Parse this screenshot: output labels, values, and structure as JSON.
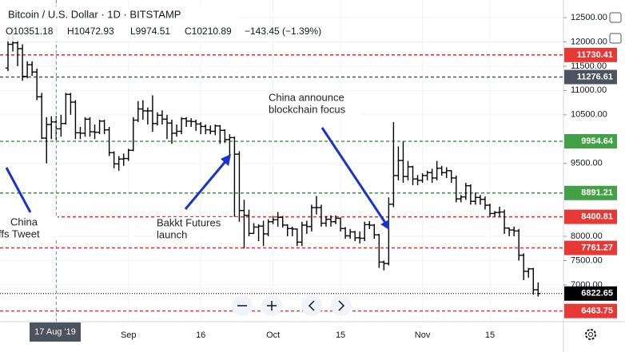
{
  "chart_data": {
    "type": "ohlc",
    "title": "Bitcoin / U.S. Dollar · 1D · BITSTAMP",
    "header_values": [
      "O10351.18",
      "H10472.93",
      "L9974.51",
      "C10210.89",
      "−143.45 (−1.39%)"
    ],
    "crosshair_label": "17 Aug '19",
    "categories": [
      null,
      null,
      null,
      null,
      null,
      null,
      null,
      null,
      null,
      null,
      null,
      null,
      null,
      null,
      null,
      null,
      null,
      null,
      null,
      null,
      null,
      null,
      null,
      null,
      null,
      "Sep",
      null,
      null,
      null,
      null,
      null,
      null,
      null,
      null,
      null,
      null,
      null,
      null,
      null,
      null,
      "16",
      null,
      null,
      null,
      null,
      null,
      null,
      null,
      null,
      null,
      null,
      null,
      null,
      null,
      null,
      "Oct",
      null,
      null,
      null,
      null,
      null,
      null,
      null,
      null,
      null,
      null,
      null,
      null,
      null,
      "15",
      null,
      null,
      null,
      null,
      null,
      null,
      null,
      null,
      null,
      null,
      null,
      null,
      null,
      null,
      null,
      null,
      "Nov",
      null,
      null,
      null,
      null,
      null,
      null,
      null,
      null,
      null,
      null,
      null,
      null,
      null,
      "15",
      null,
      null,
      null,
      null,
      null,
      null,
      null,
      null,
      null,
      null
    ],
    "crosshair_index": 10,
    "series": [
      {
        "color": "#000000",
        "open": [
          11460,
          11950,
          11980,
          11860,
          11290,
          11530,
          11380,
          10870,
          10020,
          10300,
          10351.18,
          10210.89,
          10320,
          10920,
          10760,
          10130,
          10120,
          10410,
          10150,
          10140,
          10370,
          10190,
          9720,
          9490,
          9590,
          9600,
          9770,
          10390,
          10620,
          10580,
          10580,
          10320,
          10490,
          10410,
          10330,
          10120,
          10160,
          10420,
          10370,
          10360,
          10310,
          10260,
          10190,
          10160,
          10270,
          10180,
          9990,
          10030,
          9690,
          8530,
          8430,
          8060,
          8190,
          8210,
          8050,
          8300,
          8340,
          8390,
          8230,
          8160,
          8150,
          7880,
          8230,
          8200,
          8590,
          8590,
          8270,
          8350,
          8300,
          8370,
          8160,
          8010,
          8090,
          7970,
          7960,
          8240,
          8230,
          8030,
          7470,
          7440,
          8660,
          9250,
          9560,
          9230,
          9430,
          9180,
          9150,
          9250,
          9310,
          9200,
          9400,
          9310,
          9350,
          9200,
          8770,
          8810,
          9040,
          8720,
          8800,
          8760,
          8640,
          8470,
          8490,
          8500,
          8170,
          8130,
          8110,
          7610,
          7280,
          7330,
          6900
        ],
        "high": [
          12100,
          12300,
          12050,
          11950,
          11600,
          11600,
          11450,
          10950,
          10450,
          10470,
          10472.93,
          10500,
          10950,
          10950,
          10800,
          10250,
          10450,
          10450,
          10300,
          10400,
          10400,
          10250,
          9750,
          9650,
          9700,
          9800,
          10450,
          10780,
          10800,
          10650,
          10900,
          10550,
          10590,
          10500,
          10400,
          10300,
          10450,
          10450,
          10430,
          10400,
          10350,
          10300,
          10280,
          10300,
          10290,
          10200,
          10100,
          10050,
          9750,
          8750,
          8550,
          8270,
          8250,
          8320,
          8350,
          8420,
          8500,
          8420,
          8250,
          8200,
          8160,
          8300,
          8320,
          8650,
          8830,
          8650,
          8420,
          8430,
          8430,
          8390,
          8190,
          8150,
          8110,
          8100,
          8300,
          8310,
          8250,
          8050,
          7500,
          8800,
          10350,
          9850,
          9950,
          9550,
          9450,
          9260,
          9300,
          9350,
          9390,
          9550,
          9450,
          9420,
          9360,
          9250,
          8850,
          9100,
          9070,
          8900,
          8850,
          8820,
          8670,
          8520,
          8610,
          8550,
          8180,
          8200,
          8150,
          7650,
          7350,
          7350,
          7050
        ],
        "low": [
          11400,
          11800,
          11500,
          11200,
          11250,
          11300,
          10800,
          10000,
          9500,
          10000,
          9974.51,
          10050,
          10300,
          10500,
          10000,
          10000,
          10050,
          10050,
          10000,
          10100,
          10100,
          9650,
          9400,
          9350,
          9450,
          9550,
          9750,
          10350,
          10400,
          10300,
          10150,
          10280,
          10300,
          10000,
          9900,
          10050,
          10100,
          10250,
          10250,
          10170,
          10100,
          10100,
          10100,
          10080,
          9900,
          9920,
          9600,
          8400,
          8300,
          7750,
          8000,
          8050,
          7900,
          7800,
          8000,
          8250,
          8200,
          8180,
          8000,
          8000,
          7800,
          7800,
          8050,
          8100,
          8450,
          8200,
          8200,
          8200,
          8250,
          8100,
          7950,
          7950,
          7900,
          7850,
          7900,
          8150,
          7950,
          7350,
          7300,
          7400,
          8600,
          9150,
          9100,
          9150,
          9050,
          9050,
          9100,
          9150,
          9100,
          9150,
          9250,
          9200,
          9100,
          8700,
          8700,
          8750,
          8650,
          8650,
          8650,
          8550,
          8400,
          8400,
          8400,
          8050,
          8000,
          8000,
          7500,
          7100,
          7150,
          6800,
          6760
        ],
        "close": [
          11950,
          11980,
          11860,
          11290,
          11530,
          11380,
          10870,
          10020,
          10300,
          10354.34,
          10210.89,
          10320,
          10920,
          10760,
          10130,
          10120,
          10410,
          10150,
          10140,
          10370,
          10190,
          9720,
          9490,
          9590,
          9600,
          9770,
          10390,
          10620,
          10580,
          10580,
          10320,
          10490,
          10410,
          10330,
          10120,
          10160,
          10420,
          10370,
          10360,
          10310,
          10260,
          10190,
          10160,
          10270,
          10180,
          9990,
          10030,
          9690,
          8530,
          8430,
          8060,
          8190,
          8210,
          8050,
          8300,
          8340,
          8390,
          8230,
          8160,
          8150,
          7880,
          8230,
          8200,
          8590,
          8590,
          8270,
          8350,
          8300,
          8370,
          8160,
          8010,
          8090,
          7970,
          7960,
          8240,
          8230,
          8030,
          7470,
          7440,
          8660,
          9250,
          9560,
          9230,
          9430,
          9180,
          9150,
          9250,
          9310,
          9200,
          9400,
          9310,
          9350,
          9200,
          8770,
          8810,
          9040,
          8720,
          8800,
          8760,
          8640,
          8470,
          8490,
          8500,
          8170,
          8130,
          8110,
          7610,
          7280,
          7330,
          6900,
          6822.65
        ]
      }
    ],
    "ylim": [
      6244,
      12861
    ],
    "yticks": [
      {
        "value": 12500,
        "label": "12500.00"
      },
      {
        "value": 12000,
        "label": "12000.00"
      },
      {
        "value": 11500,
        "label": "11500.00"
      },
      {
        "value": 11000,
        "label": "11000.00"
      },
      {
        "value": 10500,
        "label": "10500.00"
      },
      {
        "value": 9500,
        "label": "9500.00"
      },
      {
        "value": 8000,
        "label": "8000.00"
      },
      {
        "value": 7500,
        "label": "7500.00"
      },
      {
        "value": 7000,
        "label": "7000.00"
      }
    ],
    "grid": true,
    "levels": [
      {
        "value": 11730.41,
        "label": "11730.41",
        "color": "#e53935",
        "style": "dashed"
      },
      {
        "value": 11276.61,
        "label": "11276.61",
        "color": "#4a5560",
        "style": "dashed"
      },
      {
        "value": 9954.64,
        "label": "9954.64",
        "color": "#43a047",
        "style": "dashed"
      },
      {
        "value": 8891.21,
        "label": "8891.21",
        "color": "#43a047",
        "style": "dashed"
      },
      {
        "value": 8400.81,
        "label": "8400.81",
        "color": "#e53935",
        "style": "dashed"
      },
      {
        "value": 7761.27,
        "label": "7761.27",
        "color": "#e53935",
        "style": "dashed"
      },
      {
        "value": 6822.65,
        "label": "6822.65",
        "color": "#000000",
        "style": "dotted"
      },
      {
        "value": 6463.75,
        "label": "6463.75",
        "color": "#e53935",
        "style": "dashed"
      }
    ],
    "annotations": [
      {
        "lines": [
          "China announce",
          "blockchain focus"
        ]
      },
      {
        "lines": [
          "Bakkt Futures",
          "launch"
        ]
      },
      {
        "lines": [
          "China",
          "ffs Tweet"
        ]
      }
    ]
  }
}
